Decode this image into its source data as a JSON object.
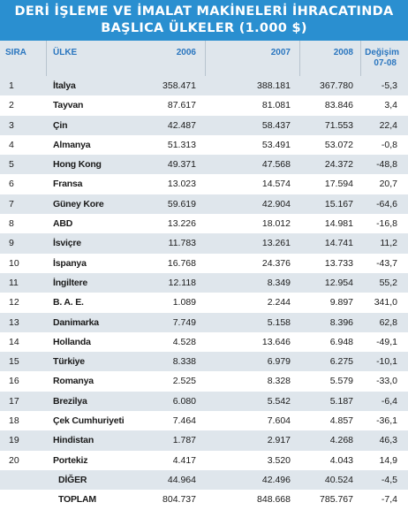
{
  "title": {
    "line1": "DERİ İŞLEME VE İMALAT MAKİNELERİ İHRACATINDA",
    "line2": "BAŞLICA ÜLKELER (1.000 $)"
  },
  "headers": {
    "sira": "SIRA",
    "ulke": "ÜLKE",
    "y2006": "2006",
    "y2007": "2007",
    "y2008": "2008",
    "degisim_line1": "Değişim",
    "degisim_line2": "07-08"
  },
  "rows": [
    {
      "sira": "1",
      "ulke": "İtalya",
      "y2006": "358.471",
      "y2007": "388.181",
      "y2008": "367.780",
      "degisim": "-5,3"
    },
    {
      "sira": "2",
      "ulke": "Tayvan",
      "y2006": "87.617",
      "y2007": "81.081",
      "y2008": "83.846",
      "degisim": "3,4"
    },
    {
      "sira": "3",
      "ulke": "Çin",
      "y2006": "42.487",
      "y2007": "58.437",
      "y2008": "71.553",
      "degisim": "22,4"
    },
    {
      "sira": "4",
      "ulke": "Almanya",
      "y2006": "51.313",
      "y2007": "53.491",
      "y2008": "53.072",
      "degisim": "-0,8"
    },
    {
      "sira": "5",
      "ulke": "Hong Kong",
      "y2006": "49.371",
      "y2007": "47.568",
      "y2008": "24.372",
      "degisim": "-48,8"
    },
    {
      "sira": "6",
      "ulke": "Fransa",
      "y2006": "13.023",
      "y2007": "14.574",
      "y2008": "17.594",
      "degisim": "20,7"
    },
    {
      "sira": "7",
      "ulke": "Güney Kore",
      "y2006": "59.619",
      "y2007": "42.904",
      "y2008": "15.167",
      "degisim": "-64,6"
    },
    {
      "sira": "8",
      "ulke": "ABD",
      "y2006": "13.226",
      "y2007": "18.012",
      "y2008": "14.981",
      "degisim": "-16,8"
    },
    {
      "sira": "9",
      "ulke": "İsviçre",
      "y2006": "11.783",
      "y2007": "13.261",
      "y2008": "14.741",
      "degisim": "11,2"
    },
    {
      "sira": "10",
      "ulke": "İspanya",
      "y2006": "16.768",
      "y2007": "24.376",
      "y2008": "13.733",
      "degisim": "-43,7"
    },
    {
      "sira": "11",
      "ulke": "İngiltere",
      "y2006": "12.118",
      "y2007": "8.349",
      "y2008": "12.954",
      "degisim": "55,2"
    },
    {
      "sira": "12",
      "ulke": "B. A. E.",
      "y2006": "1.089",
      "y2007": "2.244",
      "y2008": "9.897",
      "degisim": "341,0"
    },
    {
      "sira": "13",
      "ulke": "Danimarka",
      "y2006": "7.749",
      "y2007": "5.158",
      "y2008": "8.396",
      "degisim": "62,8"
    },
    {
      "sira": "14",
      "ulke": "Hollanda",
      "y2006": "4.528",
      "y2007": "13.646",
      "y2008": "6.948",
      "degisim": "-49,1"
    },
    {
      "sira": "15",
      "ulke": "Türkiye",
      "y2006": "8.338",
      "y2007": "6.979",
      "y2008": "6.275",
      "degisim": "-10,1"
    },
    {
      "sira": "16",
      "ulke": "Romanya",
      "y2006": "2.525",
      "y2007": "8.328",
      "y2008": "5.579",
      "degisim": "-33,0"
    },
    {
      "sira": "17",
      "ulke": "Brezilya",
      "y2006": "6.080",
      "y2007": "5.542",
      "y2008": "5.187",
      "degisim": "-6,4"
    },
    {
      "sira": "18",
      "ulke": "Çek Cumhuriyeti",
      "y2006": "7.464",
      "y2007": "7.604",
      "y2008": "4.857",
      "degisim": "-36,1"
    },
    {
      "sira": "19",
      "ulke": "Hindistan",
      "y2006": "1.787",
      "y2007": "2.917",
      "y2008": "4.268",
      "degisim": "46,3"
    },
    {
      "sira": "20",
      "ulke": "Portekiz",
      "y2006": "4.417",
      "y2007": "3.520",
      "y2008": "4.043",
      "degisim": "14,9"
    },
    {
      "sira": "",
      "ulke": "DİĞER",
      "y2006": "44.964",
      "y2007": "42.496",
      "y2008": "40.524",
      "degisim": "-4,5"
    },
    {
      "sira": "",
      "ulke": "TOPLAM",
      "y2006": "804.737",
      "y2007": "848.668",
      "y2008": "785.767",
      "degisim": "-7,4"
    }
  ],
  "colors": {
    "title_bg": "#2a8fd0",
    "header_text": "#2a76bf",
    "row_alt": "#dfe6ec",
    "row_white": "#ffffff"
  }
}
